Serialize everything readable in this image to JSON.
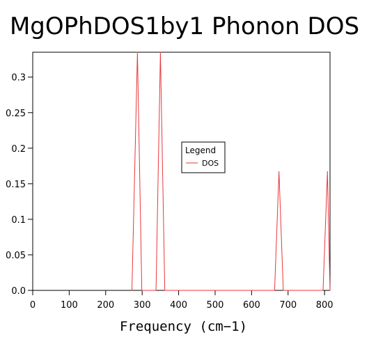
{
  "chart_data": {
    "type": "line",
    "title": "MgOPhDOS1by1 Phonon DOS",
    "xlabel": "Frequency (cm−1)",
    "ylabel": "",
    "xlim": [
      0,
      815
    ],
    "ylim": [
      0,
      0.335
    ],
    "xticks": [
      "0",
      "100",
      "200",
      "300",
      "400",
      "500",
      "600",
      "700",
      "800"
    ],
    "xtick_values": [
      0,
      100,
      200,
      300,
      400,
      500,
      600,
      700,
      800
    ],
    "yticks": [
      "0.0",
      "0.05",
      "0.1",
      "0.15",
      "0.2",
      "0.25",
      "0.3"
    ],
    "ytick_values": [
      0,
      0.05,
      0.1,
      0.15,
      0.2,
      0.25,
      0.3
    ],
    "grid": false,
    "legend": {
      "title": "Legend",
      "position": "center"
    },
    "series": [
      {
        "name": "DOS",
        "color": "#e8363a",
        "x": [
          272,
          287,
          299,
          338,
          350,
          362,
          663,
          675,
          687,
          796,
          808,
          815
        ],
        "y": [
          0,
          0.335,
          0,
          0,
          0.335,
          0,
          0,
          0.167,
          0,
          0,
          0.167,
          0
        ]
      }
    ]
  }
}
